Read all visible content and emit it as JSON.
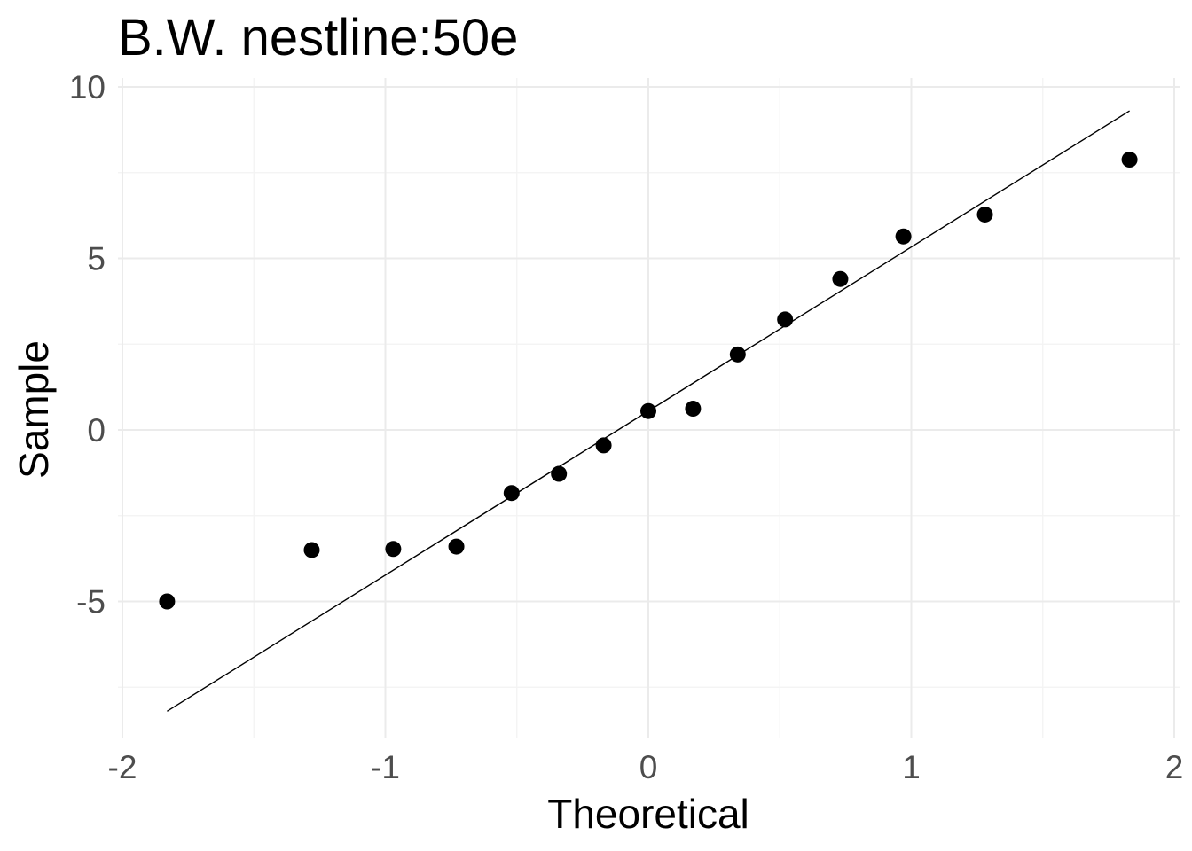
{
  "chart_data": {
    "type": "scatter",
    "subtype": "qq-plot",
    "title": "B.W. nestline:50e",
    "xlabel": "Theoretical",
    "ylabel": "Sample",
    "xlim": [
      -2,
      2
    ],
    "ylim": [
      -8.5,
      10
    ],
    "x_ticks": [
      -2,
      -1,
      0,
      1,
      2
    ],
    "x_tick_labels": [
      "-2",
      "-1",
      "0",
      "1",
      "2"
    ],
    "y_ticks": [
      -5,
      0,
      5,
      10
    ],
    "y_tick_labels": [
      "-5",
      "0",
      "5",
      "10"
    ],
    "x_minor_ticks": [
      -1.5,
      -0.5,
      0.5,
      1.5
    ],
    "y_minor_ticks": [
      -7.5,
      -2.5,
      2.5,
      7.5
    ],
    "grid": true,
    "legend": "none",
    "points": [
      {
        "x": -1.83,
        "y": -5.0
      },
      {
        "x": -1.28,
        "y": -3.5
      },
      {
        "x": -0.97,
        "y": -3.47
      },
      {
        "x": -0.73,
        "y": -3.4
      },
      {
        "x": -0.52,
        "y": -1.84
      },
      {
        "x": -0.34,
        "y": -1.28
      },
      {
        "x": -0.17,
        "y": -0.45
      },
      {
        "x": 0.0,
        "y": 0.55
      },
      {
        "x": 0.17,
        "y": 0.62
      },
      {
        "x": 0.34,
        "y": 2.2
      },
      {
        "x": 0.52,
        "y": 3.22
      },
      {
        "x": 0.73,
        "y": 4.4
      },
      {
        "x": 0.97,
        "y": 5.64
      },
      {
        "x": 1.28,
        "y": 6.28
      },
      {
        "x": 1.83,
        "y": 7.88
      }
    ],
    "reference_line": {
      "x": [
        -1.83,
        1.83
      ],
      "y": [
        -8.2,
        9.3
      ]
    },
    "colors": {
      "points": "#000000",
      "line": "#000000",
      "grid": "#ebebeb",
      "tick_text": "#4d4d4d"
    }
  }
}
